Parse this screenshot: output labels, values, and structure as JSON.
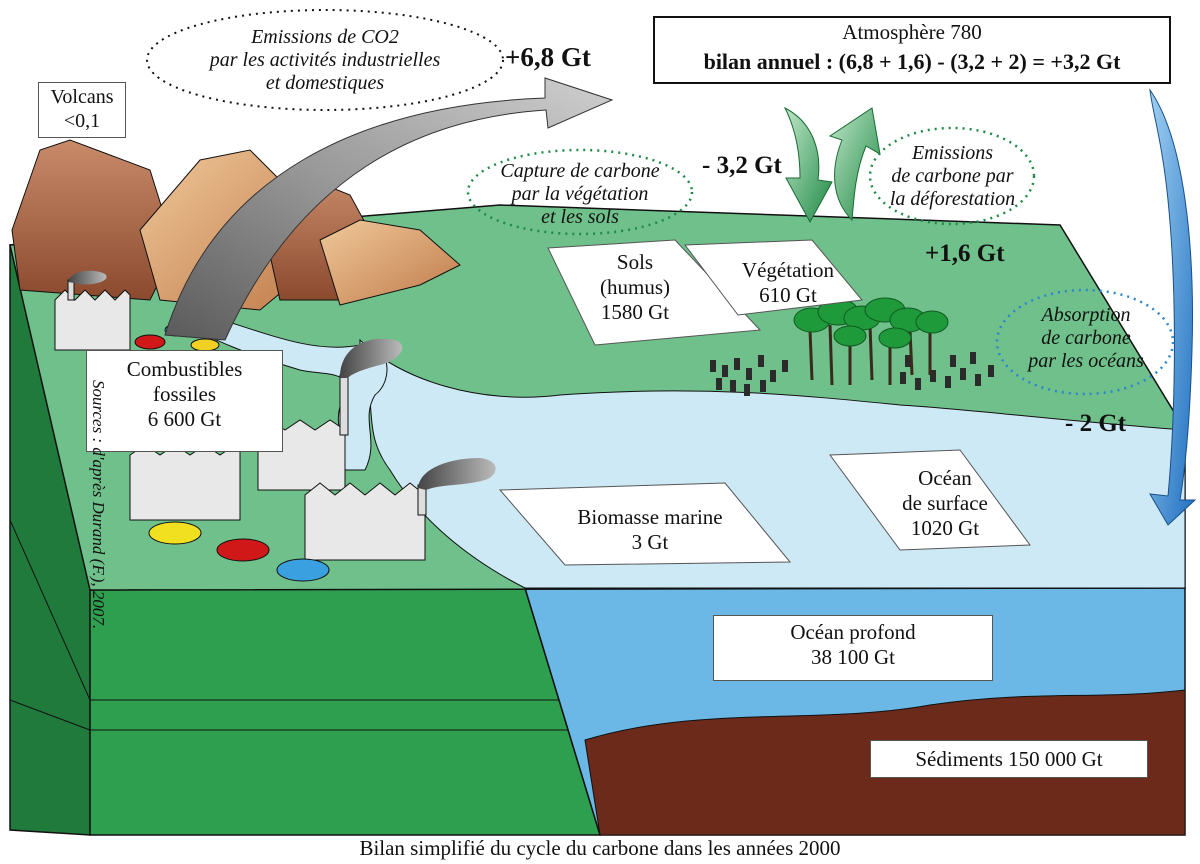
{
  "atmosphere": {
    "title": "Atmosphère 780",
    "balance": "bilan annuel : (6,8 + 1,6) - (3,2 + 2) = +3,2 Gt"
  },
  "emissions_industrial": {
    "lines": [
      "Emissions de CO2",
      "par les activités industrielles",
      "et domestiques"
    ],
    "flux": "+6,8 Gt"
  },
  "volcans": {
    "lines": [
      "Volcans",
      "<0,1"
    ]
  },
  "capture_vegetation": {
    "lines": [
      "Capture de carbone",
      "par la végétation",
      "et les sols"
    ],
    "flux": "- 3,2 Gt"
  },
  "emissions_deforestation": {
    "lines": [
      "Emissions",
      "de carbone par",
      "la déforestation"
    ],
    "flux": "+1,6 Gt"
  },
  "absorption_oceans": {
    "lines": [
      "Absorption",
      "de carbone",
      "par les océans"
    ],
    "flux": "- 2 Gt"
  },
  "reservoirs": {
    "combustibles": [
      "Combustibles",
      "fossiles",
      "6 600 Gt"
    ],
    "sols": [
      "Sols",
      "(humus)",
      "1580 Gt"
    ],
    "vegetation": [
      "Végétation",
      "610 Gt"
    ],
    "biomasse": [
      "Biomasse marine",
      "3 Gt"
    ],
    "ocean_surface": [
      "Océan",
      "de surface",
      "1020 Gt"
    ],
    "ocean_profond": [
      "Océan profond",
      "38 100 Gt"
    ],
    "sediments": "Sédiments 150 000 Gt"
  },
  "caption": "Bilan simplifié du cycle du carbone dans les années 2000",
  "sources": "Sources : d'après Durand (F.), 2007.",
  "colors": {
    "land_top": "#6fc08a",
    "land_front": "#2e9e4f",
    "land_side": "#1f7a3b",
    "ocean_surface": "#cde9f5",
    "ocean_deep": "#6bb8e6",
    "sediment": "#6b2a1a",
    "arrow_grey": "#8a8a8a",
    "arrow_green": "#2fa05a",
    "arrow_blue": "#3a8fd6"
  }
}
